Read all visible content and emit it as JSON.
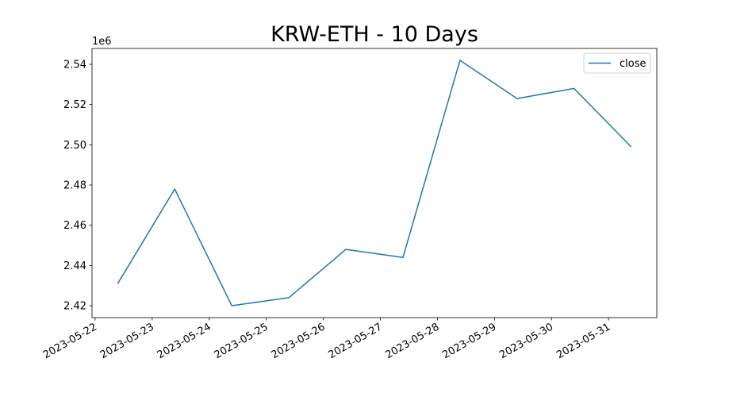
{
  "chart_data": {
    "type": "line",
    "title": "KRW-ETH - 10 Days",
    "y_offset_label": "1e6",
    "x": [
      "2023-05-22T09:30",
      "2023-05-23T09:30",
      "2023-05-24T09:30",
      "2023-05-25T09:30",
      "2023-05-26T09:30",
      "2023-05-27T09:30",
      "2023-05-28T09:30",
      "2023-05-29T09:30",
      "2023-05-30T09:30",
      "2023-05-31T09:30"
    ],
    "series": [
      {
        "name": "close",
        "color": "#1f77b4",
        "values": [
          2.431,
          2.478,
          2.42,
          2.424,
          2.448,
          2.444,
          2.542,
          2.523,
          2.528,
          2.499
        ]
      }
    ],
    "xlim": [
      "2023-05-21T22:42",
      "2023-05-31T20:18"
    ],
    "xticks": [
      "2023-05-22",
      "2023-05-23",
      "2023-05-24",
      "2023-05-25",
      "2023-05-26",
      "2023-05-27",
      "2023-05-28",
      "2023-05-29",
      "2023-05-30",
      "2023-05-31"
    ],
    "ylim": [
      2.4141,
      2.5479
    ],
    "yticks": [
      2.42,
      2.44,
      2.46,
      2.48,
      {
        "value": 2.5,
        "label": "2.50"
      },
      2.52,
      2.54
    ],
    "legend": "upper right",
    "grid": false
  }
}
